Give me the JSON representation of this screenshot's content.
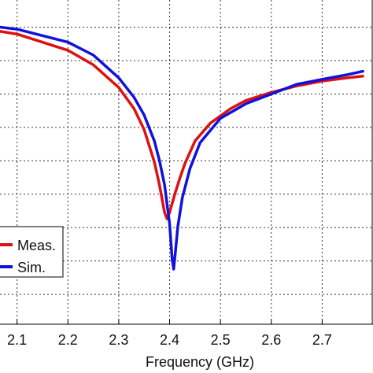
{
  "chart_data": {
    "type": "line",
    "title": "",
    "xlabel": "Frequency (GHz)",
    "ylabel": "",
    "xlim": [
      2.02,
      2.8
    ],
    "ylim": [
      0,
      1
    ],
    "x_ticks": [
      2.1,
      2.2,
      2.3,
      2.4,
      2.5,
      2.6,
      2.7
    ],
    "x_tick_labels": [
      "2.1",
      "2.2",
      "2.3",
      "2.4",
      "2.5",
      "2.6",
      "2.7"
    ],
    "y_gridlines": [
      0.092,
      0.195,
      0.298,
      0.401,
      0.504,
      0.607,
      0.71,
      0.813,
      0.916
    ],
    "grid": true,
    "legend_position": "bottom-left",
    "series": [
      {
        "name": "Meas.",
        "color": "#dd1111",
        "x": [
          2.02,
          2.1,
          2.2,
          2.25,
          2.3,
          2.33,
          2.35,
          2.37,
          2.38,
          2.39,
          2.395,
          2.4,
          2.41,
          2.42,
          2.43,
          2.45,
          2.48,
          2.52,
          2.55,
          2.6,
          2.65,
          2.7,
          2.75,
          2.78
        ],
        "values": [
          0.915,
          0.895,
          0.845,
          0.8,
          0.73,
          0.665,
          0.6,
          0.5,
          0.43,
          0.345,
          0.325,
          0.345,
          0.4,
          0.45,
          0.495,
          0.565,
          0.62,
          0.665,
          0.69,
          0.715,
          0.735,
          0.75,
          0.76,
          0.765
        ]
      },
      {
        "name": "Sim.",
        "color": "#1111dd",
        "x": [
          2.02,
          2.1,
          2.2,
          2.25,
          2.3,
          2.33,
          2.35,
          2.37,
          2.38,
          2.39,
          2.4,
          2.405,
          2.408,
          2.411,
          2.416,
          2.425,
          2.44,
          2.46,
          2.5,
          2.55,
          2.6,
          2.65,
          2.7,
          2.75,
          2.78
        ],
        "values": [
          0.925,
          0.91,
          0.87,
          0.83,
          0.76,
          0.7,
          0.645,
          0.565,
          0.505,
          0.43,
          0.31,
          0.2,
          0.17,
          0.215,
          0.3,
          0.39,
          0.48,
          0.56,
          0.635,
          0.68,
          0.71,
          0.74,
          0.755,
          0.77,
          0.78
        ]
      }
    ]
  }
}
